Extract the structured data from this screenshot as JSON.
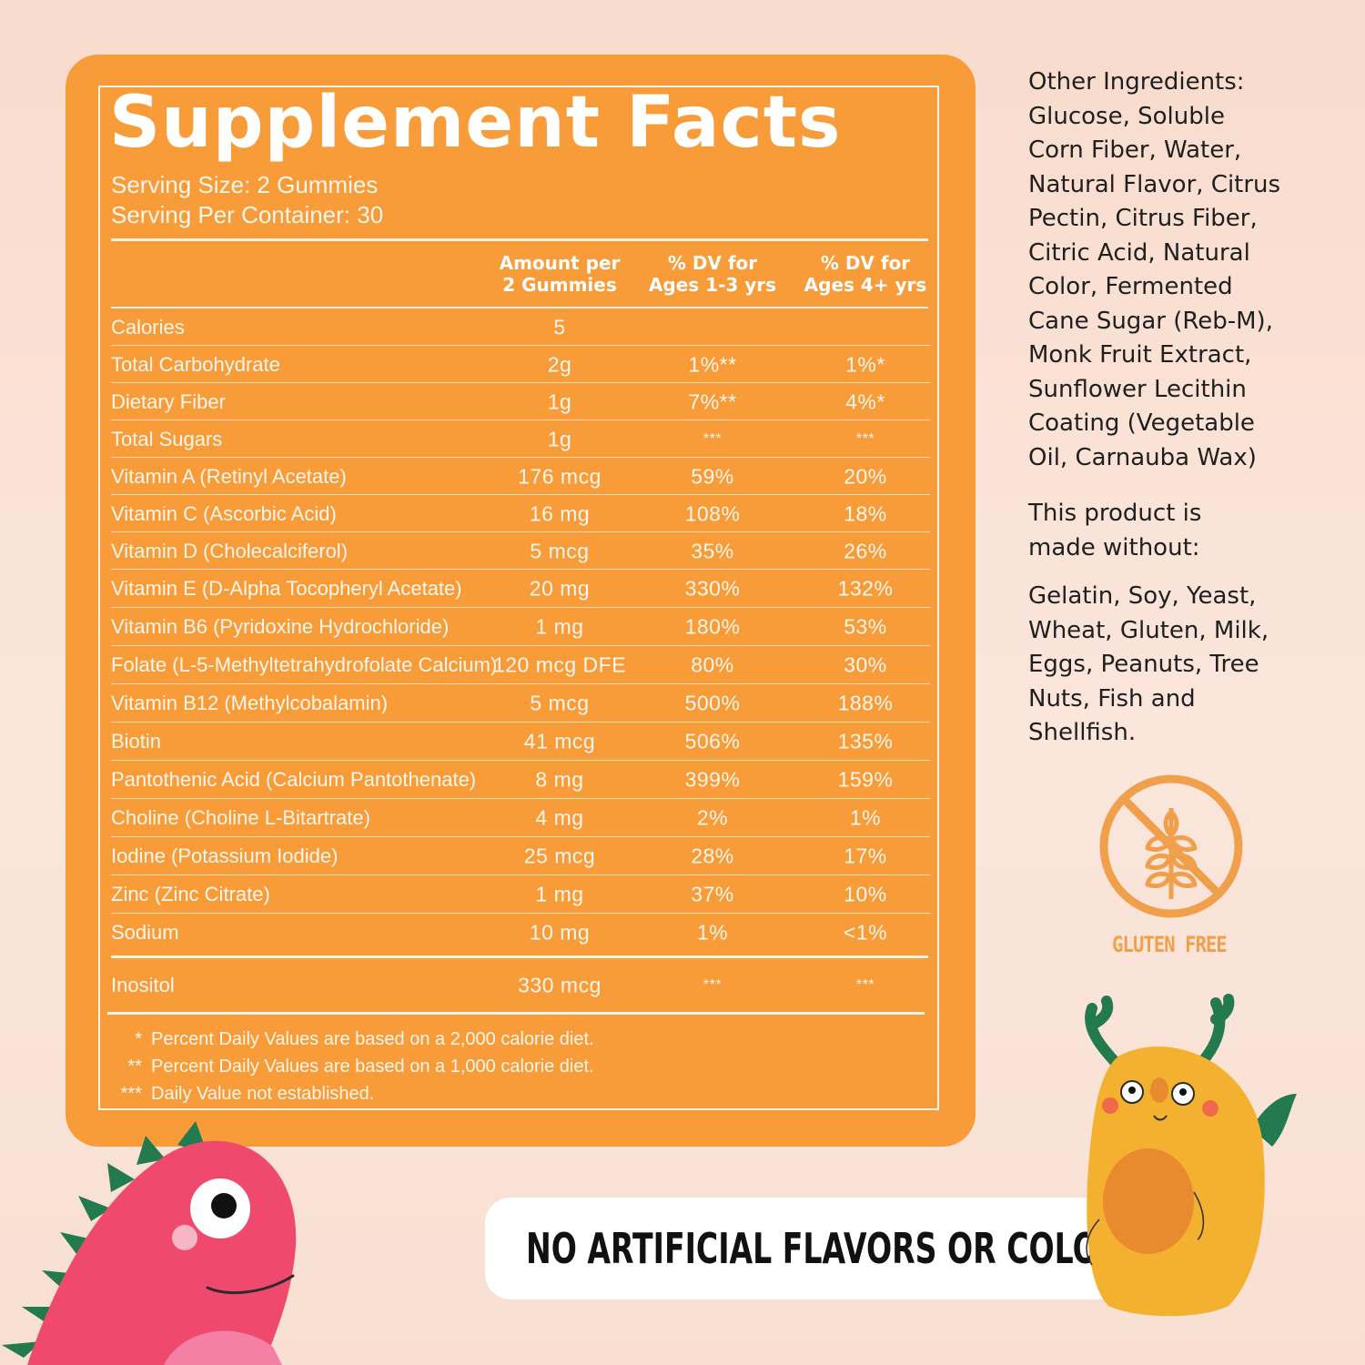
{
  "facts": {
    "title": "Supplement Facts",
    "serving_size": "Serving Size: 2 Gummies",
    "servings_per_container": "Serving Per Container: 30",
    "headers": [
      {
        "line1": "Amount per",
        "line2": "2 Gummies"
      },
      {
        "line1": "% DV for",
        "line2": "Ages 1-3 yrs"
      },
      {
        "line1": "% DV for",
        "line2": "Ages 4+ yrs"
      }
    ],
    "rows": [
      {
        "name": "Calories",
        "amount": "5",
        "dv1": "",
        "dv2": ""
      },
      {
        "name": "Total Carbohydrate",
        "amount": "2g",
        "dv1": "1%**",
        "dv2": "1%*"
      },
      {
        "name": "Dietary Fiber",
        "amount": "1g",
        "dv1": "7%**",
        "dv2": "4%*"
      },
      {
        "name": "Total Sugars",
        "amount": "1g",
        "dv1": "***",
        "dv2": "***"
      },
      {
        "name": "Vitamin A (Retinyl Acetate)",
        "amount": "176 mcg",
        "dv1": "59%",
        "dv2": "20%"
      },
      {
        "name": "Vitamin C (Ascorbic Acid)",
        "amount": "16 mg",
        "dv1": "108%",
        "dv2": "18%"
      },
      {
        "name": "Vitamin D (Cholecalciferol)",
        "amount": "5 mcg",
        "dv1": "35%",
        "dv2": "26%"
      },
      {
        "name": "Vitamin E (D-Alpha Tocopheryl Acetate)",
        "amount": "20 mg",
        "dv1": "330%",
        "dv2": "132%"
      },
      {
        "name": "Vitamin B6 (Pyridoxine Hydrochloride)",
        "amount": "1 mg",
        "dv1": "180%",
        "dv2": "53%"
      },
      {
        "name": "Folate (L-5-Methyltetrahydrofolate Calcium)",
        "amount": "120 mcg DFE",
        "dv1": "80%",
        "dv2": "30%"
      },
      {
        "name": "Vitamin B12 (Methylcobalamin)",
        "amount": "5 mcg",
        "dv1": "500%",
        "dv2": "188%"
      },
      {
        "name": "Biotin",
        "amount": "41 mcg",
        "dv1": "506%",
        "dv2": "135%"
      },
      {
        "name": "Pantothenic Acid (Calcium Pantothenate)",
        "amount": "8 mg",
        "dv1": "399%",
        "dv2": "159%"
      },
      {
        "name": "Choline (Choline L-Bitartrate)",
        "amount": "4 mg",
        "dv1": "2%",
        "dv2": "1%"
      },
      {
        "name": "Iodine (Potassium Iodide)",
        "amount": "25 mcg",
        "dv1": "28%",
        "dv2": "17%"
      },
      {
        "name": "Zinc (Zinc Citrate)",
        "amount": "1 mg",
        "dv1": "37%",
        "dv2": "10%"
      },
      {
        "name": "Sodium",
        "amount": "10 mg",
        "dv1": "1%",
        "dv2": "<1%"
      }
    ],
    "extra_row": {
      "name": "Inositol",
      "amount": "330 mcg",
      "dv1": "***",
      "dv2": "***"
    },
    "footnotes": [
      {
        "mark": "*",
        "text": "Percent Daily Values are based on a 2,000 calorie diet."
      },
      {
        "mark": "**",
        "text": "Percent Daily Values are based on a 1,000 calorie diet."
      },
      {
        "mark": "***",
        "text": "Daily Value not established."
      }
    ]
  },
  "sidebar": {
    "other_ingredients_lines": [
      "Other Ingredients:",
      "Glucose,  Soluble",
      "Corn Fiber, Water,",
      "Natural Flavor, Citrus",
      "Pectin, Citrus Fiber,",
      "Citric Acid, Natural",
      "Color, Fermented",
      "Cane Sugar (Reb-M),",
      "Monk Fruit Extract,",
      "Sunflower Lecithin",
      "Coating (Vegetable",
      "Oil, Carnauba Wax)"
    ],
    "made_without_heading_lines": [
      "This product is",
      "made without:"
    ],
    "made_without_lines": [
      "Gelatin, Soy, Yeast,",
      "Wheat, Gluten, Milk,",
      "Eggs, Peanuts, Tree",
      "Nuts, Fish and",
      "Shellfish."
    ]
  },
  "badge": {
    "label": "GLUTEN FREE",
    "icon": "gluten-free-wheat-icon",
    "color": "#f0a04b"
  },
  "banner": {
    "text": "NO ARTIFICIAL FLAVORS OR COLORS"
  },
  "mascots": [
    {
      "icon": "pink-dinosaur-mascot",
      "color": "#ef4a6e"
    },
    {
      "icon": "yellow-monster-mascot",
      "color": "#f3b12f"
    }
  ],
  "colors": {
    "panel": "#f89b39",
    "background": "#f9dfd2",
    "accent_green": "#237a4f"
  }
}
